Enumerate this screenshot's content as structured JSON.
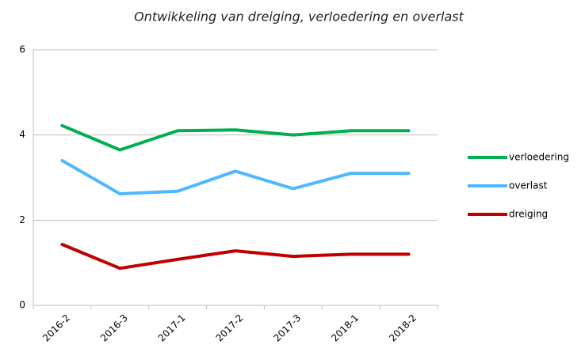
{
  "chart_data": {
    "type": "line",
    "title": "Ontwikkeling van  dreiging, verloedering en overlast",
    "categories": [
      "2016-2",
      "2016-3",
      "2017-1",
      "2017-2",
      "2017-3",
      "2018-1",
      "2018-2"
    ],
    "series": [
      {
        "name": "verloedering",
        "color": "#00b050",
        "values": [
          4.22,
          3.65,
          4.1,
          4.12,
          4.0,
          4.1,
          4.1
        ]
      },
      {
        "name": "overlast",
        "color": "#4db8ff",
        "values": [
          3.4,
          2.62,
          2.68,
          3.15,
          2.74,
          3.1,
          3.1
        ]
      },
      {
        "name": "dreiging",
        "color": "#c00000",
        "values": [
          1.43,
          0.87,
          1.08,
          1.28,
          1.15,
          1.2,
          1.2
        ]
      }
    ],
    "ylim": [
      0,
      6
    ],
    "yticks": [
      0,
      2,
      4,
      6
    ],
    "grid": true,
    "legend": "right"
  }
}
